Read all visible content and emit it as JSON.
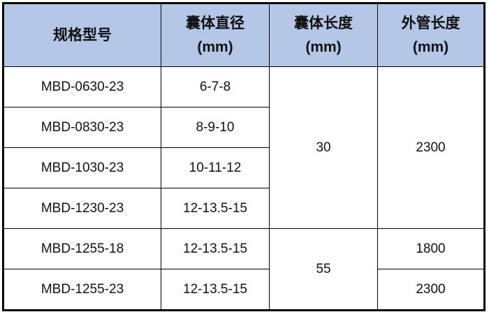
{
  "header": {
    "model": "规格型号",
    "diameter": [
      "囊体直径",
      "(mm)"
    ],
    "length": [
      "囊体长度",
      "(mm)"
    ],
    "tube": [
      "外管长度",
      "(mm)"
    ]
  },
  "rows": [
    {
      "model": "MBD-0630-23",
      "diameter": "6-7-8"
    },
    {
      "model": "MBD-0830-23",
      "diameter": "8-9-10"
    },
    {
      "model": "MBD-1030-23",
      "diameter": "10-11-12"
    },
    {
      "model": "MBD-1230-23",
      "diameter": "12-13.5-15"
    },
    {
      "model": "MBD-1255-18",
      "diameter": "12-13.5-15"
    },
    {
      "model": "MBD-1255-23",
      "diameter": "12-13.5-15"
    }
  ],
  "merged": {
    "length_30": "30",
    "tube_2300_a": "2300",
    "length_55": "55",
    "tube_1800": "1800",
    "tube_2300_b": "2300"
  },
  "colors": {
    "header_bg": "#b4c7e7",
    "border": "#000000"
  }
}
